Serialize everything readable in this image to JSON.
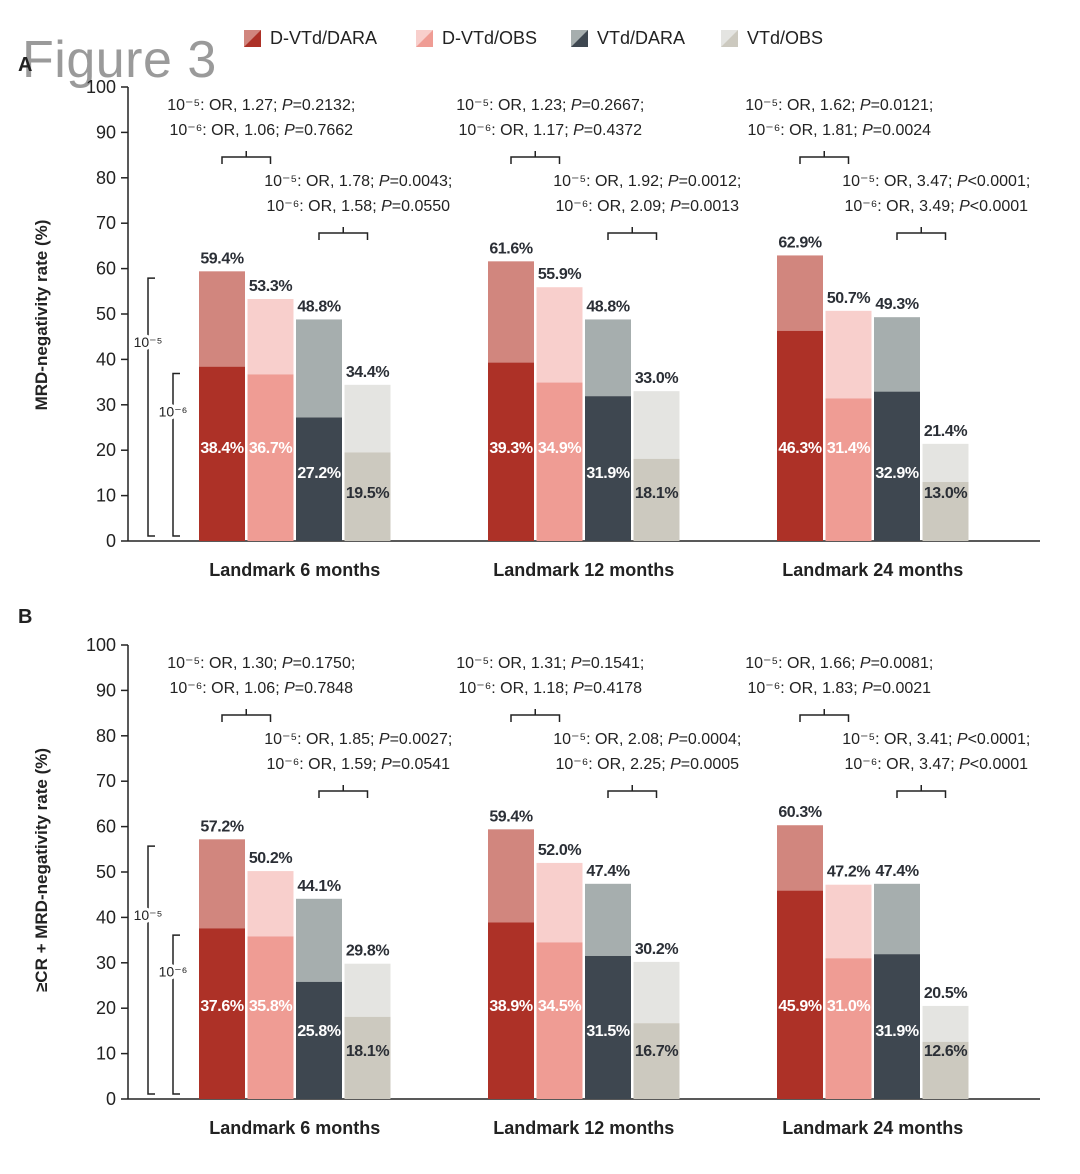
{
  "figure_title": "Figure 3",
  "legend": [
    {
      "label": "D-VTd/DARA",
      "dark": "#ad3127",
      "light": "#d1867e"
    },
    {
      "label": "D-VTd/OBS",
      "dark": "#ef9c94",
      "light": "#f8cfcc"
    },
    {
      "label": "VTd/DARA",
      "dark": "#3e4750",
      "light": "#a6aeae"
    },
    {
      "label": "VTd/OBS",
      "dark": "#ccc9bf",
      "light": "#e4e4e1"
    }
  ],
  "bracket_labels": {
    "outer": "10⁻⁵",
    "inner": "10⁻⁶"
  },
  "chart_data": [
    {
      "type": "bar",
      "panel": "A",
      "ylabel": "MRD-negativity rate (%)",
      "ylim": [
        0,
        100
      ],
      "yticks": [
        0,
        10,
        20,
        30,
        40,
        50,
        60,
        70,
        80,
        90,
        100
      ],
      "categories": [
        "Landmark 6 months",
        "Landmark 12 months",
        "Landmark 24 months"
      ],
      "series": [
        {
          "name": "D-VTd/DARA",
          "values_1e5": [
            59.4,
            61.6,
            62.9
          ],
          "values_1e6": [
            38.4,
            39.3,
            46.3
          ],
          "labels_1e5": [
            "59.4%",
            "61.6%",
            "62.9%"
          ],
          "labels_1e6": [
            "38.4%",
            "39.3%",
            "46.3%"
          ]
        },
        {
          "name": "D-VTd/OBS",
          "values_1e5": [
            53.3,
            55.9,
            50.7
          ],
          "values_1e6": [
            36.7,
            34.9,
            31.4
          ],
          "labels_1e5": [
            "53.3%",
            "55.9%",
            "50.7%"
          ],
          "labels_1e6": [
            "36.7%",
            "34.9%",
            "31.4%"
          ]
        },
        {
          "name": "VTd/DARA",
          "values_1e5": [
            48.8,
            48.8,
            49.3
          ],
          "values_1e6": [
            27.2,
            31.9,
            32.9
          ],
          "labels_1e5": [
            "48.8%",
            "48.8%",
            "49.3%"
          ],
          "labels_1e6": [
            "27.2%",
            "31.9%",
            "32.9%"
          ]
        },
        {
          "name": "VTd/OBS",
          "values_1e5": [
            34.4,
            33.0,
            21.4
          ],
          "values_1e6": [
            19.5,
            18.1,
            13.0
          ],
          "labels_1e5": [
            "34.4%",
            "33.0%",
            "21.4%"
          ],
          "labels_1e6": [
            "19.5%",
            "18.1%",
            "13.0%"
          ]
        }
      ],
      "annotations": [
        {
          "group": 0,
          "bars": [
            0,
            1
          ],
          "lines": [
            [
              {
                "t": "10⁻⁵: OR, 1.27; "
              },
              {
                "t": "P",
                "i": true
              },
              {
                "t": "=0.2132;"
              }
            ],
            [
              {
                "t": "10⁻⁶: OR, 1.06; "
              },
              {
                "t": "P",
                "i": true
              },
              {
                "t": "=0.7662"
              }
            ]
          ]
        },
        {
          "group": 0,
          "bars": [
            2,
            3
          ],
          "lines": [
            [
              {
                "t": "10⁻⁵: OR, 1.78; "
              },
              {
                "t": "P",
                "i": true
              },
              {
                "t": "=0.0043;"
              }
            ],
            [
              {
                "t": "10⁻⁶: OR, 1.58; "
              },
              {
                "t": "P",
                "i": true
              },
              {
                "t": "=0.0550"
              }
            ]
          ]
        },
        {
          "group": 1,
          "bars": [
            0,
            1
          ],
          "lines": [
            [
              {
                "t": "10⁻⁵: OR, 1.23; "
              },
              {
                "t": "P",
                "i": true
              },
              {
                "t": "=0.2667;"
              }
            ],
            [
              {
                "t": "10⁻⁶: OR, 1.17; "
              },
              {
                "t": "P",
                "i": true
              },
              {
                "t": "=0.4372"
              }
            ]
          ]
        },
        {
          "group": 1,
          "bars": [
            2,
            3
          ],
          "lines": [
            [
              {
                "t": "10⁻⁵: OR, 1.92; "
              },
              {
                "t": "P",
                "i": true
              },
              {
                "t": "=0.0012;"
              }
            ],
            [
              {
                "t": "10⁻⁶: OR, 2.09; "
              },
              {
                "t": "P",
                "i": true
              },
              {
                "t": "=0.0013"
              }
            ]
          ]
        },
        {
          "group": 2,
          "bars": [
            0,
            1
          ],
          "lines": [
            [
              {
                "t": "10⁻⁵: OR, 1.62; "
              },
              {
                "t": "P",
                "i": true
              },
              {
                "t": "=0.0121;"
              }
            ],
            [
              {
                "t": "10⁻⁶: OR, 1.81; "
              },
              {
                "t": "P",
                "i": true
              },
              {
                "t": "=0.0024"
              }
            ]
          ]
        },
        {
          "group": 2,
          "bars": [
            2,
            3
          ],
          "lines": [
            [
              {
                "t": "10⁻⁵: OR, 3.47; "
              },
              {
                "t": "P",
                "i": true
              },
              {
                "t": "<0.0001;"
              }
            ],
            [
              {
                "t": "10⁻⁶: OR, 3.49; "
              },
              {
                "t": "P",
                "i": true
              },
              {
                "t": "<0.0001"
              }
            ]
          ]
        }
      ]
    },
    {
      "type": "bar",
      "panel": "B",
      "ylabel": "≥CR + MRD-negativity rate (%)",
      "ylim": [
        0,
        100
      ],
      "yticks": [
        0,
        10,
        20,
        30,
        40,
        50,
        60,
        70,
        80,
        90,
        100
      ],
      "categories": [
        "Landmark 6 months",
        "Landmark 12 months",
        "Landmark 24 months"
      ],
      "series": [
        {
          "name": "D-VTd/DARA",
          "values_1e5": [
            57.2,
            59.4,
            60.3
          ],
          "values_1e6": [
            37.6,
            38.9,
            45.9
          ],
          "labels_1e5": [
            "57.2%",
            "59.4%",
            "60.3%"
          ],
          "labels_1e6": [
            "37.6%",
            "38.9%",
            "45.9%"
          ]
        },
        {
          "name": "D-VTd/OBS",
          "values_1e5": [
            50.2,
            52.0,
            47.2
          ],
          "values_1e6": [
            35.8,
            34.5,
            31.0
          ],
          "labels_1e5": [
            "50.2%",
            "52.0%",
            "47.2%"
          ],
          "labels_1e6": [
            "35.8%",
            "34.5%",
            "31.0%"
          ]
        },
        {
          "name": "VTd/DARA",
          "values_1e5": [
            44.1,
            47.4,
            47.4
          ],
          "values_1e6": [
            25.8,
            31.5,
            31.9
          ],
          "labels_1e5": [
            "44.1%",
            "47.4%",
            "47.4%"
          ],
          "labels_1e6": [
            "25.8%",
            "31.5%",
            "31.9%"
          ]
        },
        {
          "name": "VTd/OBS",
          "values_1e5": [
            29.8,
            30.2,
            20.5
          ],
          "values_1e6": [
            18.1,
            16.7,
            12.6
          ],
          "labels_1e5": [
            "29.8%",
            "30.2%",
            "20.5%"
          ],
          "labels_1e6": [
            "18.1%",
            "16.7%",
            "12.6%"
          ]
        }
      ],
      "annotations": [
        {
          "group": 0,
          "bars": [
            0,
            1
          ],
          "lines": [
            [
              {
                "t": "10⁻⁵: OR, 1.30; "
              },
              {
                "t": "P",
                "i": true
              },
              {
                "t": "=0.1750;"
              }
            ],
            [
              {
                "t": "10⁻⁶: OR, 1.06; "
              },
              {
                "t": "P",
                "i": true
              },
              {
                "t": "=0.7848"
              }
            ]
          ]
        },
        {
          "group": 0,
          "bars": [
            2,
            3
          ],
          "lines": [
            [
              {
                "t": "10⁻⁵: OR, 1.85; "
              },
              {
                "t": "P",
                "i": true
              },
              {
                "t": "=0.0027;"
              }
            ],
            [
              {
                "t": "10⁻⁶: OR, 1.59; "
              },
              {
                "t": "P",
                "i": true
              },
              {
                "t": "=0.0541"
              }
            ]
          ]
        },
        {
          "group": 1,
          "bars": [
            0,
            1
          ],
          "lines": [
            [
              {
                "t": "10⁻⁵: OR, 1.31; "
              },
              {
                "t": "P",
                "i": true
              },
              {
                "t": "=0.1541;"
              }
            ],
            [
              {
                "t": "10⁻⁶: OR, 1.18; "
              },
              {
                "t": "P",
                "i": true
              },
              {
                "t": "=0.4178"
              }
            ]
          ]
        },
        {
          "group": 1,
          "bars": [
            2,
            3
          ],
          "lines": [
            [
              {
                "t": "10⁻⁵: OR, 2.08; "
              },
              {
                "t": "P",
                "i": true
              },
              {
                "t": "=0.0004;"
              }
            ],
            [
              {
                "t": "10⁻⁶: OR, 2.25; "
              },
              {
                "t": "P",
                "i": true
              },
              {
                "t": "=0.0005"
              }
            ]
          ]
        },
        {
          "group": 2,
          "bars": [
            0,
            1
          ],
          "lines": [
            [
              {
                "t": "10⁻⁵: OR, 1.66; "
              },
              {
                "t": "P",
                "i": true
              },
              {
                "t": "=0.0081;"
              }
            ],
            [
              {
                "t": "10⁻⁶: OR, 1.83; "
              },
              {
                "t": "P",
                "i": true
              },
              {
                "t": "=0.0021"
              }
            ]
          ]
        },
        {
          "group": 2,
          "bars": [
            2,
            3
          ],
          "lines": [
            [
              {
                "t": "10⁻⁵: OR, 3.41; "
              },
              {
                "t": "P",
                "i": true
              },
              {
                "t": "<0.0001;"
              }
            ],
            [
              {
                "t": "10⁻⁶: OR, 3.47; "
              },
              {
                "t": "P",
                "i": true
              },
              {
                "t": "<0.0001"
              }
            ]
          ]
        }
      ]
    }
  ]
}
